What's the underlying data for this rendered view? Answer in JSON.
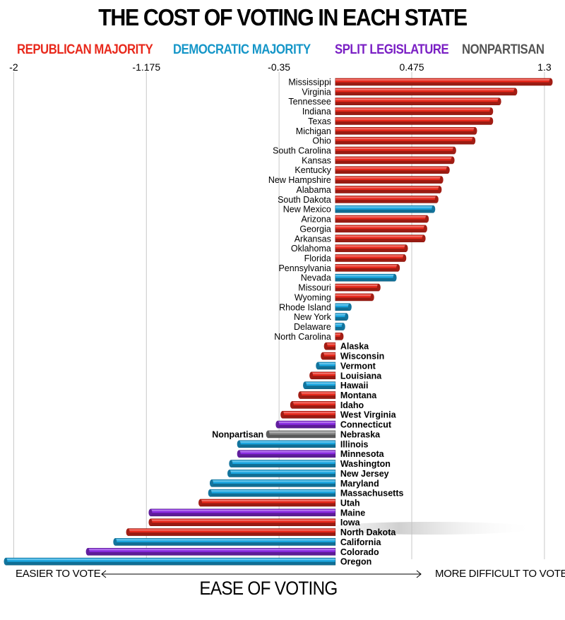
{
  "chart_data": {
    "type": "bar",
    "orientation": "horizontal",
    "title": "THE COST OF VOTING IN EACH STATE",
    "xlabel": "EASE OF VOTING",
    "xlabel_left": "EASIER TO VOTE",
    "xlabel_right": "MORE DIFFICULT  TO VOTE",
    "xlim": [
      -2.05,
      1.34
    ],
    "xticks": [
      -2,
      -1.175,
      -0.35,
      0.475,
      1.3
    ],
    "xtick_labels": [
      "-2",
      "-1.175",
      "-0.35",
      "0.475",
      "1.3"
    ],
    "grid": true,
    "legend": [
      {
        "key": "R",
        "label": "REPUBLICAN MAJORITY",
        "color": "#e8291c"
      },
      {
        "key": "D",
        "label": "DEMOCRATIC MAJORITY",
        "color": "#1596c8"
      },
      {
        "key": "S",
        "label": "SPLIT LEGISLATURE",
        "color": "#7a1fc4"
      },
      {
        "key": "N",
        "label": "NONPARTISAN",
        "color": "#555555"
      }
    ],
    "colors": {
      "R": "#e8291c",
      "D": "#1aa6e0",
      "S": "#8a2be2",
      "N": "#888888"
    },
    "bars": [
      {
        "state": "Mississippi",
        "value": 1.34,
        "party": "R"
      },
      {
        "state": "Virginia",
        "value": 1.12,
        "party": "R"
      },
      {
        "state": "Tennessee",
        "value": 1.02,
        "party": "R"
      },
      {
        "state": "Indiana",
        "value": 0.97,
        "party": "R"
      },
      {
        "state": "Texas",
        "value": 0.97,
        "party": "R"
      },
      {
        "state": "Michigan",
        "value": 0.87,
        "party": "R"
      },
      {
        "state": "Ohio",
        "value": 0.86,
        "party": "R"
      },
      {
        "state": "South Carolina",
        "value": 0.74,
        "party": "R"
      },
      {
        "state": "Kansas",
        "value": 0.73,
        "party": "R"
      },
      {
        "state": "Kentucky",
        "value": 0.7,
        "party": "R"
      },
      {
        "state": "New Hampshire",
        "value": 0.66,
        "party": "R"
      },
      {
        "state": "Alabama",
        "value": 0.65,
        "party": "R"
      },
      {
        "state": "South Dakota",
        "value": 0.63,
        "party": "R"
      },
      {
        "state": "New Mexico",
        "value": 0.61,
        "party": "D"
      },
      {
        "state": "Arizona",
        "value": 0.57,
        "party": "R"
      },
      {
        "state": "Georgia",
        "value": 0.56,
        "party": "R"
      },
      {
        "state": "Arkansas",
        "value": 0.55,
        "party": "R"
      },
      {
        "state": "Oklahoma",
        "value": 0.44,
        "party": "R"
      },
      {
        "state": "Florida",
        "value": 0.43,
        "party": "R"
      },
      {
        "state": "Pennsylvania",
        "value": 0.39,
        "party": "R"
      },
      {
        "state": "Nevada",
        "value": 0.37,
        "party": "D"
      },
      {
        "state": "Missouri",
        "value": 0.27,
        "party": "R"
      },
      {
        "state": "Wyoming",
        "value": 0.23,
        "party": "R"
      },
      {
        "state": "Rhode Island",
        "value": 0.09,
        "party": "D"
      },
      {
        "state": "New York",
        "value": 0.07,
        "party": "D"
      },
      {
        "state": "Delaware",
        "value": 0.05,
        "party": "D"
      },
      {
        "state": "North Carolina",
        "value": 0.04,
        "party": "R"
      },
      {
        "state": "Alaska",
        "value": -0.06,
        "party": "R"
      },
      {
        "state": "Wisconsin",
        "value": -0.08,
        "party": "R"
      },
      {
        "state": "Vermont",
        "value": -0.11,
        "party": "D"
      },
      {
        "state": "Louisiana",
        "value": -0.15,
        "party": "R"
      },
      {
        "state": "Hawaii",
        "value": -0.19,
        "party": "D"
      },
      {
        "state": "Montana",
        "value": -0.22,
        "party": "R"
      },
      {
        "state": "Idaho",
        "value": -0.27,
        "party": "R"
      },
      {
        "state": "West Virginia",
        "value": -0.33,
        "party": "R"
      },
      {
        "state": "Connecticut",
        "value": -0.36,
        "party": "S"
      },
      {
        "state": "Nebraska",
        "value": -0.42,
        "party": "N",
        "annotation": "Nonpartisan"
      },
      {
        "state": "Illinois",
        "value": -0.6,
        "party": "D"
      },
      {
        "state": "Minnesota",
        "value": -0.6,
        "party": "S"
      },
      {
        "state": "Washington",
        "value": -0.65,
        "party": "D"
      },
      {
        "state": "New Jersey",
        "value": -0.66,
        "party": "D"
      },
      {
        "state": "Maryland",
        "value": -0.77,
        "party": "D"
      },
      {
        "state": "Massachusetts",
        "value": -0.78,
        "party": "D"
      },
      {
        "state": "Utah",
        "value": -0.84,
        "party": "R"
      },
      {
        "state": "Maine",
        "value": -1.15,
        "party": "S"
      },
      {
        "state": "Iowa",
        "value": -1.15,
        "party": "R"
      },
      {
        "state": "North Dakota",
        "value": -1.29,
        "party": "R"
      },
      {
        "state": "California",
        "value": -1.37,
        "party": "D"
      },
      {
        "state": "Colorado",
        "value": -1.54,
        "party": "S"
      },
      {
        "state": "Oregon",
        "value": -2.05,
        "party": "D"
      }
    ]
  }
}
